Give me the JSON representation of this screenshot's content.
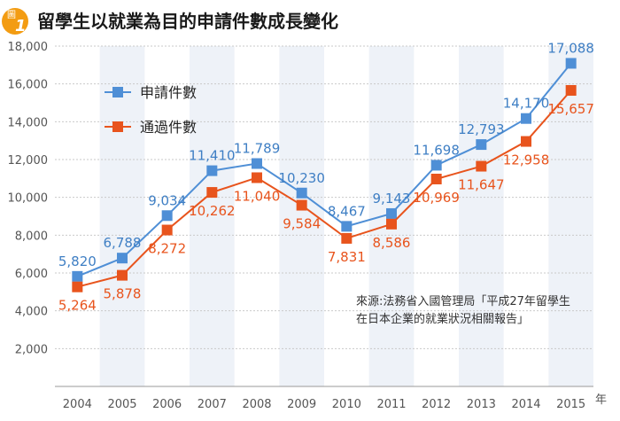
{
  "header": {
    "badge_char": "圖",
    "badge_num": "1",
    "title": "留學生以就業為目的申請件數成長變化"
  },
  "source_note": {
    "line1": "來源:法務省入國管理局「平成27年留學生",
    "line2": "在日本企業的就業狀況相關報告」"
  },
  "x_unit": "年",
  "colors": {
    "blue": "#4f8fd6",
    "blue_label": "#3f7fc4",
    "orange": "#e8541d",
    "orange_label": "#e8541d",
    "badge": "#f39c12",
    "stripe": "#eef2f8",
    "grid": "#c9c9c9"
  },
  "chart_data": {
    "type": "line",
    "title": "留學生以就業為目的申請件數成長變化",
    "xlabel": "年",
    "ylabel": "",
    "categories": [
      "2004",
      "2005",
      "2006",
      "2007",
      "2008",
      "2009",
      "2010",
      "2011",
      "2012",
      "2013",
      "2014",
      "2015"
    ],
    "ylim": [
      0,
      18000
    ],
    "yticks": [
      2000,
      4000,
      6000,
      8000,
      10000,
      12000,
      14000,
      16000,
      18000
    ],
    "ytick_labels": [
      "2,000",
      "4,000",
      "6,000",
      "8,000",
      "10,000",
      "12,000",
      "14,000",
      "16,000",
      "18,000"
    ],
    "grid": true,
    "legend_position": "top-left",
    "series": [
      {
        "name": "申請件數",
        "color": "#4f8fd6",
        "values": [
          5820,
          6788,
          9034,
          11410,
          11789,
          10230,
          8467,
          9143,
          11698,
          12793,
          14170,
          17088
        ],
        "labels": [
          "5,820",
          "6,788",
          "9,034",
          "11,410",
          "11,789",
          "10,230",
          "8,467",
          "9,143",
          "11,698",
          "12,793",
          "14,170",
          "17,088"
        ]
      },
      {
        "name": "通過件數",
        "color": "#e8541d",
        "values": [
          5264,
          5878,
          8272,
          10262,
          11040,
          9584,
          7831,
          8586,
          10969,
          11647,
          12958,
          15657
        ],
        "labels": [
          "5,264",
          "5,878",
          "8,272",
          "10,262",
          "11,040",
          "9,584",
          "7,831",
          "8,586",
          "10,969",
          "11,647",
          "12,958",
          "15,657"
        ]
      }
    ]
  }
}
